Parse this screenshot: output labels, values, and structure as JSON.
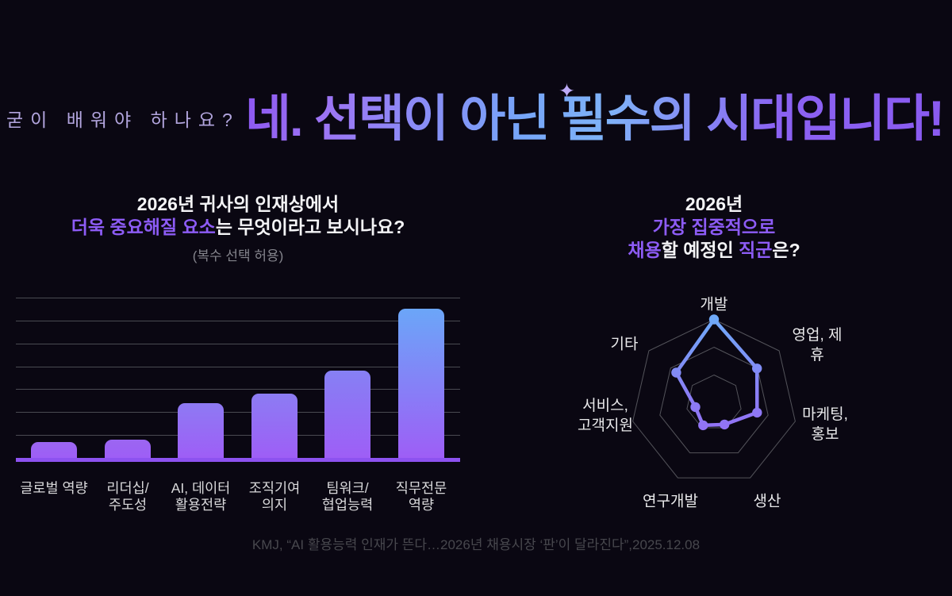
{
  "page": {
    "kicker": "굳이 배워야 하나요?",
    "title": "네. 선택이 아닌 필수의 시대입니다!",
    "sparkle_icon": "✦",
    "footer": "KMJ, “AI 활용능력 인재가 뜬다…2026년 채용시장 ‘판’이 달라진다”,2025.12.08",
    "background_color": "#0a0712"
  },
  "left_section": {
    "title_line1": "2026년 귀사의 인재상에서",
    "title_line2_highlight": "더욱 중요해질 요소",
    "title_line2_rest": "는 무엇이라고 보시나요?",
    "subtitle": "(복수 선택 허용)"
  },
  "right_section": {
    "title_line1": "2026년",
    "title_line2": "가장 집중적으로",
    "title_line3_parts": [
      {
        "text": "채용",
        "highlight": true
      },
      {
        "text": "할 예정인 ",
        "highlight": false
      },
      {
        "text": "직군",
        "highlight": true
      },
      {
        "text": "은?",
        "highlight": false
      }
    ]
  },
  "colors": {
    "accent_purple": "#8d5cf6",
    "accent_blue": "#6fa9f8",
    "bar_purple_bottom": "#9e5ef6",
    "grid_gray": "#4a4a52",
    "radar_grid_gray": "#53535a",
    "footer_gray": "#47474d"
  },
  "chart_data": [
    {
      "type": "bar",
      "title": "2026년 귀사의 인재상에서 더욱 중요해질 요소는 무엇이라고 보시나요?",
      "subtitle": "(복수 선택 허용)",
      "categories": [
        "글로벌 역량",
        "리더십/\n주도성",
        "AI, 데이터\n활용전략",
        "조직기여\n의지",
        "팀워크/\n협업능력",
        "직무전문\n역량"
      ],
      "values": [
        7,
        8,
        24,
        28,
        38,
        65
      ],
      "ylim": [
        0,
        70
      ],
      "gridline_step": 10,
      "grid": "horizontal lines, no tick labels",
      "xlabel": "",
      "ylabel": ""
    },
    {
      "type": "radar",
      "title": "2026년 가장 집중적으로 채용할 예정인 직군은?",
      "categories": [
        "개발",
        "영업, 제휴",
        "마케팅,\n홍보",
        "생산",
        "연구개발",
        "서비스,\n고객지원",
        "기타"
      ],
      "values": [
        100,
        66,
        53,
        29,
        30,
        23,
        58
      ],
      "max": 100,
      "rings": 3,
      "shape": "heptagon",
      "legend": "none"
    }
  ]
}
